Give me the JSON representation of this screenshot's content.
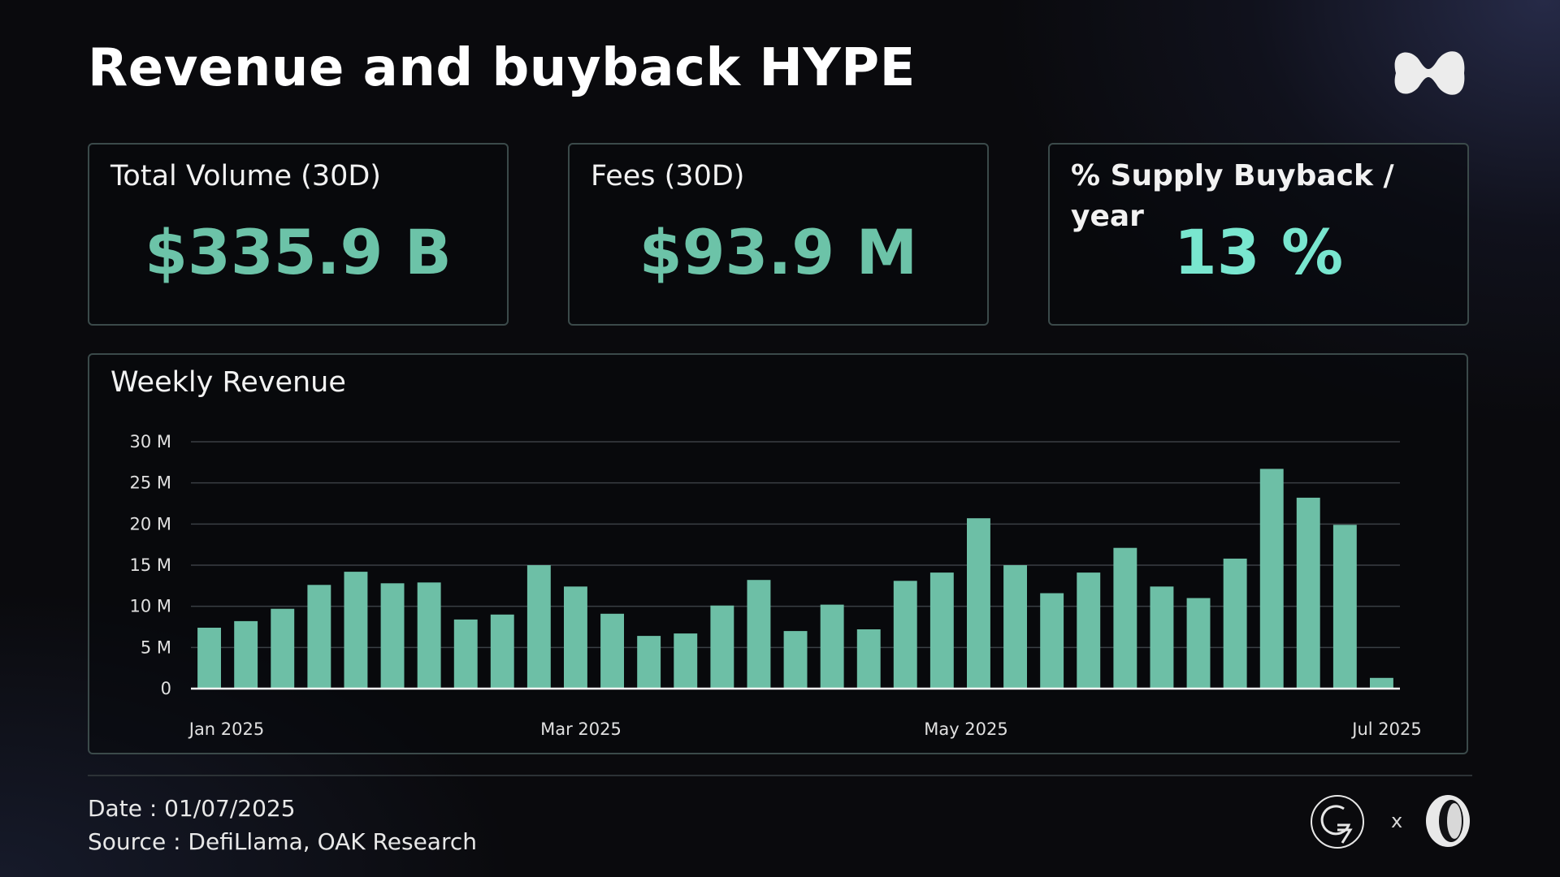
{
  "title": "Revenue and buyback HYPE",
  "kpis": [
    {
      "label": "Total Volume (30D)",
      "value": "$335.9 B"
    },
    {
      "label": "Fees (30D)",
      "value": "$93.9 M"
    },
    {
      "label": "% Supply Buyback / year",
      "value": "13 %"
    }
  ],
  "chart_data": {
    "type": "bar",
    "title": "Weekly Revenue",
    "xlabel": "",
    "ylabel": "",
    "ylim": [
      0,
      30
    ],
    "y_ticks": [
      "0",
      "5 M",
      "10 M",
      "15 M",
      "20 M",
      "25 M",
      "30 M"
    ],
    "x_tick_labels": [
      "Jan 2025",
      "Mar 2025",
      "May 2025",
      "Jul 2025"
    ],
    "grid": true,
    "bar_color": "#6dbfa6",
    "values": [
      7.4,
      8.2,
      9.7,
      12.6,
      14.2,
      12.8,
      12.9,
      8.4,
      9.0,
      15.0,
      12.4,
      9.1,
      6.4,
      6.7,
      10.1,
      13.2,
      7.0,
      10.2,
      7.2,
      13.1,
      14.1,
      20.7,
      15.0,
      11.6,
      14.1,
      17.1,
      12.4,
      11.0,
      15.8,
      26.7,
      23.2,
      19.9,
      1.3
    ]
  },
  "footer": {
    "date": "Date : 01/07/2025",
    "source": "Source : DefiLlama, OAK Research",
    "separator": "x"
  },
  "colors": {
    "accent": "#6cc3a8",
    "accent_bright": "#79e6cf",
    "border": "#3b4a4a"
  },
  "icons": {
    "brand_logo": "hyperliquid-logo",
    "partner_logo": "g7-logo",
    "research_logo": "oak-research-logo"
  }
}
